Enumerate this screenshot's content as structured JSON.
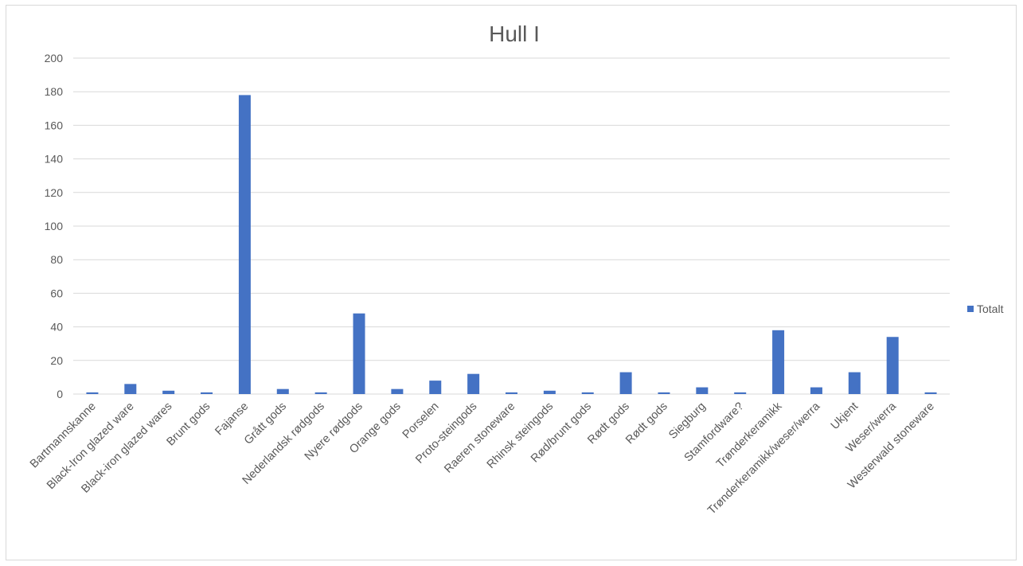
{
  "chart_data": {
    "type": "bar",
    "title": "Hull I",
    "xlabel": "",
    "ylabel": "",
    "ylim": [
      0,
      200
    ],
    "yticks": [
      0,
      20,
      40,
      60,
      80,
      100,
      120,
      140,
      160,
      180,
      200
    ],
    "grid": true,
    "legend_position": "right",
    "categories": [
      "Bartmannskanne",
      "Black-Iron glazed ware",
      "Black-iron glazed wares",
      "Brunt gods",
      "Fajanse",
      "Grått gods",
      "Nederlandsk rødgods",
      "Nyere rødgods",
      "Orange gods",
      "Porselen",
      "Proto-steingods",
      "Raeren stoneware",
      "Rhinsk steingods",
      "Rød/brunt gods",
      "Rødt gods",
      "Rødt gods",
      "Siegburg",
      "Stamfordware?",
      "Trønderkeramikk",
      "Trønderkeramikk/weser/werra",
      "Ukjent",
      "Weser/werra",
      "Westerwald stoneware"
    ],
    "series": [
      {
        "name": "Totalt",
        "color": "#4472c4",
        "values": [
          1,
          6,
          2,
          1,
          178,
          3,
          1,
          48,
          3,
          8,
          12,
          1,
          2,
          1,
          13,
          1,
          4,
          1,
          38,
          4,
          13,
          34,
          1
        ]
      }
    ]
  }
}
